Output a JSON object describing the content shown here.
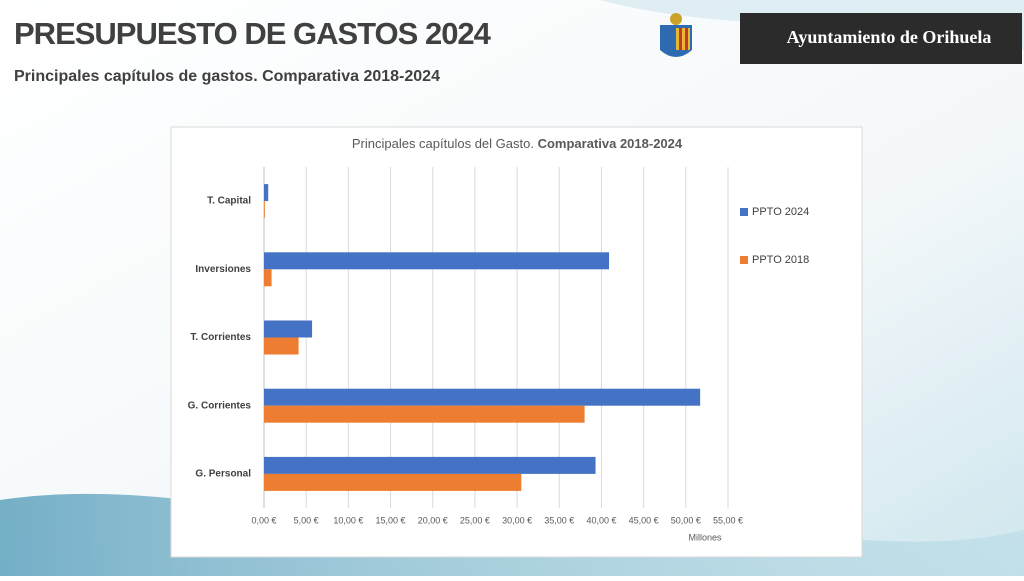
{
  "header": {
    "title": "PRESUPUESTO DE GASTOS 2024",
    "subtitle": "Principales capítulos de gastos. Comparativa 2018-2024",
    "organization": "Ayuntamiento de Orihuela"
  },
  "chart_data": {
    "type": "bar",
    "orientation": "horizontal",
    "title_parts": [
      "Principales capítulos del Gasto.",
      "Comparativa 2018-2024"
    ],
    "x_label": "Millones",
    "categories": [
      "T. Capital",
      "Inversiones",
      "T. Corrientes",
      "G. Corrientes",
      "G. Personal"
    ],
    "series": [
      {
        "name": "PPTO 2024",
        "color": "#4472c4",
        "values": [
          0.5,
          40.9,
          5.7,
          51.7,
          39.3
        ]
      },
      {
        "name": "PPTO 2018",
        "color": "#ed7d31",
        "values": [
          0.1,
          0.9,
          4.1,
          38.0,
          30.5
        ]
      }
    ],
    "xlim": [
      0,
      55
    ],
    "xticks": [
      {
        "value": 0,
        "label": "0,00 €"
      },
      {
        "value": 5,
        "label": "5,00 €"
      },
      {
        "value": 10,
        "label": "10,00 €"
      },
      {
        "value": 15,
        "label": "15,00 €"
      },
      {
        "value": 20,
        "label": "20,00 €"
      },
      {
        "value": 25,
        "label": "25,00 €"
      },
      {
        "value": 30,
        "label": "30,00 €"
      },
      {
        "value": 35,
        "label": "35,00 €"
      },
      {
        "value": 40,
        "label": "40,00 €"
      },
      {
        "value": 45,
        "label": "45,00 €"
      },
      {
        "value": 50,
        "label": "50,00 €"
      },
      {
        "value": 55,
        "label": "55,00 €"
      }
    ],
    "grid": true,
    "legend_position": "right"
  }
}
